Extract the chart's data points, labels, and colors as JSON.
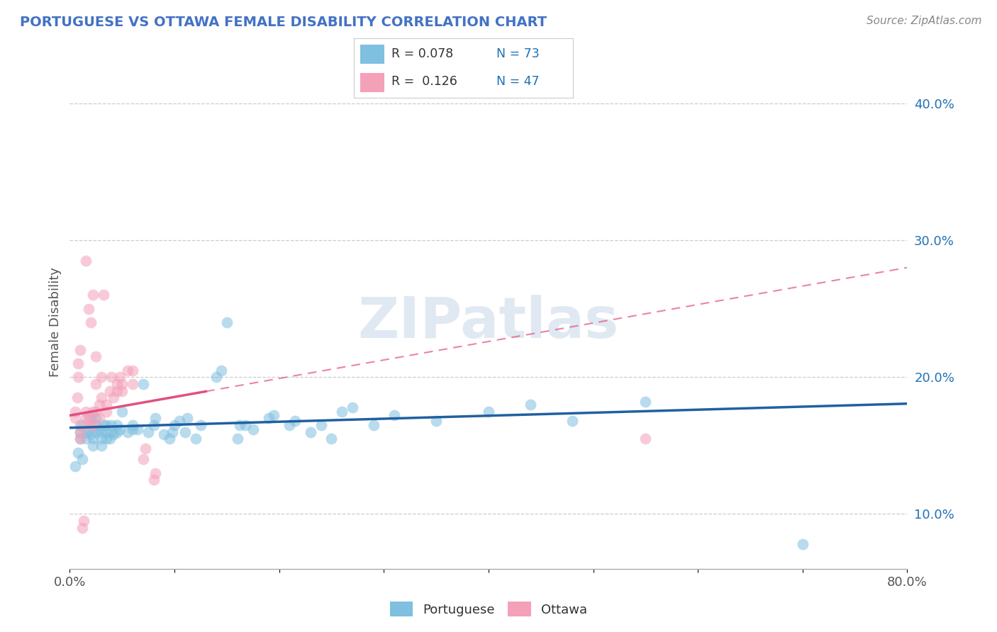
{
  "title": "PORTUGUESE VS OTTAWA FEMALE DISABILITY CORRELATION CHART",
  "source": "Source: ZipAtlas.com",
  "ylabel": "Female Disability",
  "xlim": [
    0.0,
    0.8
  ],
  "ylim": [
    0.06,
    0.42
  ],
  "blue_color": "#7fbfdf",
  "pink_color": "#f4a0b8",
  "blue_line_color": "#2160a0",
  "pink_line_color": "#e05080",
  "pink_line_dashed": true,
  "title_color": "#4472c4",
  "watermark": "ZIPatlas",
  "blue_scatter": [
    [
      0.005,
      0.135
    ],
    [
      0.008,
      0.145
    ],
    [
      0.01,
      0.155
    ],
    [
      0.01,
      0.16
    ],
    [
      0.01,
      0.165
    ],
    [
      0.012,
      0.14
    ],
    [
      0.015,
      0.155
    ],
    [
      0.015,
      0.16
    ],
    [
      0.018,
      0.162
    ],
    [
      0.02,
      0.17
    ],
    [
      0.02,
      0.158
    ],
    [
      0.022,
      0.15
    ],
    [
      0.022,
      0.155
    ],
    [
      0.025,
      0.16
    ],
    [
      0.025,
      0.165
    ],
    [
      0.025,
      0.17
    ],
    [
      0.028,
      0.162
    ],
    [
      0.03,
      0.15
    ],
    [
      0.03,
      0.155
    ],
    [
      0.03,
      0.16
    ],
    [
      0.032,
      0.165
    ],
    [
      0.035,
      0.155
    ],
    [
      0.035,
      0.16
    ],
    [
      0.035,
      0.165
    ],
    [
      0.038,
      0.155
    ],
    [
      0.04,
      0.16
    ],
    [
      0.04,
      0.165
    ],
    [
      0.042,
      0.158
    ],
    [
      0.045,
      0.16
    ],
    [
      0.045,
      0.165
    ],
    [
      0.048,
      0.162
    ],
    [
      0.05,
      0.175
    ],
    [
      0.055,
      0.16
    ],
    [
      0.06,
      0.162
    ],
    [
      0.06,
      0.165
    ],
    [
      0.065,
      0.162
    ],
    [
      0.07,
      0.195
    ],
    [
      0.075,
      0.16
    ],
    [
      0.08,
      0.165
    ],
    [
      0.082,
      0.17
    ],
    [
      0.09,
      0.158
    ],
    [
      0.095,
      0.155
    ],
    [
      0.098,
      0.16
    ],
    [
      0.1,
      0.165
    ],
    [
      0.105,
      0.168
    ],
    [
      0.11,
      0.16
    ],
    [
      0.112,
      0.17
    ],
    [
      0.12,
      0.155
    ],
    [
      0.125,
      0.165
    ],
    [
      0.14,
      0.2
    ],
    [
      0.145,
      0.205
    ],
    [
      0.15,
      0.24
    ],
    [
      0.16,
      0.155
    ],
    [
      0.162,
      0.165
    ],
    [
      0.168,
      0.165
    ],
    [
      0.175,
      0.162
    ],
    [
      0.19,
      0.17
    ],
    [
      0.195,
      0.172
    ],
    [
      0.21,
      0.165
    ],
    [
      0.215,
      0.168
    ],
    [
      0.23,
      0.16
    ],
    [
      0.24,
      0.165
    ],
    [
      0.25,
      0.155
    ],
    [
      0.26,
      0.175
    ],
    [
      0.27,
      0.178
    ],
    [
      0.29,
      0.165
    ],
    [
      0.31,
      0.172
    ],
    [
      0.35,
      0.168
    ],
    [
      0.4,
      0.175
    ],
    [
      0.44,
      0.18
    ],
    [
      0.48,
      0.168
    ],
    [
      0.55,
      0.182
    ],
    [
      0.7,
      0.078
    ]
  ],
  "pink_scatter": [
    [
      0.005,
      0.17
    ],
    [
      0.005,
      0.175
    ],
    [
      0.007,
      0.185
    ],
    [
      0.008,
      0.2
    ],
    [
      0.008,
      0.21
    ],
    [
      0.01,
      0.22
    ],
    [
      0.01,
      0.155
    ],
    [
      0.01,
      0.16
    ],
    [
      0.012,
      0.165
    ],
    [
      0.012,
      0.09
    ],
    [
      0.013,
      0.095
    ],
    [
      0.015,
      0.17
    ],
    [
      0.015,
      0.175
    ],
    [
      0.015,
      0.285
    ],
    [
      0.018,
      0.17
    ],
    [
      0.018,
      0.25
    ],
    [
      0.02,
      0.165
    ],
    [
      0.02,
      0.24
    ],
    [
      0.022,
      0.165
    ],
    [
      0.022,
      0.175
    ],
    [
      0.022,
      0.26
    ],
    [
      0.025,
      0.175
    ],
    [
      0.025,
      0.195
    ],
    [
      0.025,
      0.215
    ],
    [
      0.028,
      0.17
    ],
    [
      0.028,
      0.18
    ],
    [
      0.03,
      0.185
    ],
    [
      0.03,
      0.2
    ],
    [
      0.032,
      0.26
    ],
    [
      0.035,
      0.175
    ],
    [
      0.035,
      0.18
    ],
    [
      0.038,
      0.19
    ],
    [
      0.04,
      0.2
    ],
    [
      0.042,
      0.185
    ],
    [
      0.045,
      0.19
    ],
    [
      0.045,
      0.195
    ],
    [
      0.048,
      0.2
    ],
    [
      0.05,
      0.19
    ],
    [
      0.05,
      0.195
    ],
    [
      0.055,
      0.205
    ],
    [
      0.06,
      0.195
    ],
    [
      0.06,
      0.205
    ],
    [
      0.07,
      0.14
    ],
    [
      0.072,
      0.148
    ],
    [
      0.08,
      0.125
    ],
    [
      0.082,
      0.13
    ],
    [
      0.55,
      0.155
    ]
  ]
}
